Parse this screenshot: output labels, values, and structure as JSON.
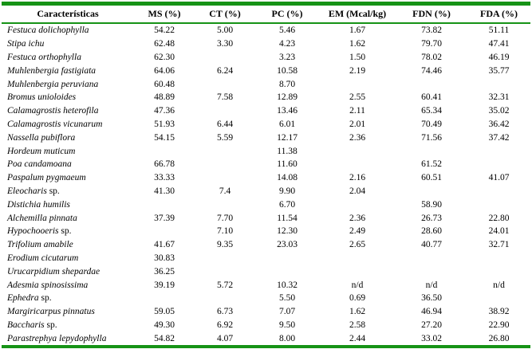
{
  "rule_color": "#169316",
  "table": {
    "columns": [
      "Características",
      "MS (%)",
      "CT (%)",
      "PC (%)",
      "EM (Mcal/kg)",
      "FDN (%)",
      "FDA (%)"
    ],
    "rows": [
      {
        "species": "Festuca dolichophylla",
        "suffix": "",
        "ms": "54.22",
        "ct": "5.00",
        "pc": "5.46",
        "em": "1.67",
        "fdn": "73.82",
        "fda": "51.11"
      },
      {
        "species": "Stipa ichu",
        "suffix": "",
        "ms": "62.48",
        "ct": "3.30",
        "pc": "4.23",
        "em": "1.62",
        "fdn": "79.70",
        "fda": "47.41"
      },
      {
        "species": "Festuca orthophylla",
        "suffix": "",
        "ms": "62.30",
        "ct": "",
        "pc": "3.23",
        "em": "1.50",
        "fdn": "78.02",
        "fda": "46.19"
      },
      {
        "species": "Muhlenbergia fastigiata",
        "suffix": "",
        "ms": "64.06",
        "ct": "6.24",
        "pc": "10.58",
        "em": "2.19",
        "fdn": "74.46",
        "fda": "35.77"
      },
      {
        "species": "Muhlenbergia peruviana",
        "suffix": "",
        "ms": "60.48",
        "ct": "",
        "pc": "8.70",
        "em": "",
        "fdn": "",
        "fda": ""
      },
      {
        "species": "Bromus unioloides",
        "suffix": "",
        "ms": "48.89",
        "ct": "7.58",
        "pc": "12.89",
        "em": "2.55",
        "fdn": "60.41",
        "fda": "32.31"
      },
      {
        "species": "Calamagrostis heterofila",
        "suffix": "",
        "ms": "47.36",
        "ct": "",
        "pc": "13.46",
        "em": "2.11",
        "fdn": "65.34",
        "fda": "35.02"
      },
      {
        "species": "Calamagrostis vicunarum",
        "suffix": "",
        "ms": "51.93",
        "ct": "6.44",
        "pc": "6.01",
        "em": "2.01",
        "fdn": "70.49",
        "fda": "36.42"
      },
      {
        "species": "Nassella pubiflora",
        "suffix": "",
        "ms": "54.15",
        "ct": "5.59",
        "pc": "12.17",
        "em": "2.36",
        "fdn": "71.56",
        "fda": "37.42"
      },
      {
        "species": "Hordeum muticum",
        "suffix": "",
        "ms": "",
        "ct": "",
        "pc": "11.38",
        "em": "",
        "fdn": "",
        "fda": ""
      },
      {
        "species": "Poa candamoana",
        "suffix": "",
        "ms": "66.78",
        "ct": "",
        "pc": "11.60",
        "em": "",
        "fdn": "61.52",
        "fda": ""
      },
      {
        "species": "Paspalum pygmaeum",
        "suffix": "",
        "ms": "33.33",
        "ct": "",
        "pc": "14.08",
        "em": "2.16",
        "fdn": "60.51",
        "fda": "41.07"
      },
      {
        "species": "Eleocharis",
        "suffix": " sp.",
        "ms": "41.30",
        "ct": "7.4",
        "pc": "9.90",
        "em": "2.04",
        "fdn": "",
        "fda": ""
      },
      {
        "species": "Distichia humilis",
        "suffix": "",
        "ms": "",
        "ct": "",
        "pc": "6.70",
        "em": "",
        "fdn": "58.90",
        "fda": ""
      },
      {
        "species": "Alchemilla pinnata",
        "suffix": "",
        "ms": "37.39",
        "ct": "7.70",
        "pc": "11.54",
        "em": "2.36",
        "fdn": "26.73",
        "fda": "22.80"
      },
      {
        "species": "Hypochooeris",
        "suffix": " sp.",
        "ms": "",
        "ct": "7.10",
        "pc": "12.30",
        "em": "2.49",
        "fdn": "28.60",
        "fda": "24.01"
      },
      {
        "species": "Trifolium amabile",
        "suffix": "",
        "ms": "41.67",
        "ct": "9.35",
        "pc": "23.03",
        "em": "2.65",
        "fdn": "40.77",
        "fda": "32.71"
      },
      {
        "species": "Erodium cicutarum",
        "suffix": "",
        "ms": "30.83",
        "ct": "",
        "pc": "",
        "em": "",
        "fdn": "",
        "fda": ""
      },
      {
        "species": "Urucarpidium shepardae",
        "suffix": "",
        "ms": "36.25",
        "ct": "",
        "pc": "",
        "em": "",
        "fdn": "",
        "fda": ""
      },
      {
        "species": "Adesmia spinosissima",
        "suffix": "",
        "ms": "39.19",
        "ct": "5.72",
        "pc": "10.32",
        "em": "n/d",
        "fdn": "n/d",
        "fda": "n/d"
      },
      {
        "species": "Ephedra",
        "suffix": " sp.",
        "ms": "",
        "ct": "",
        "pc": "5.50",
        "em": "0.69",
        "fdn": "36.50",
        "fda": ""
      },
      {
        "species": "Margiricarpus pinnatus",
        "suffix": "",
        "ms": "59.05",
        "ct": "6.73",
        "pc": "7.07",
        "em": "1.62",
        "fdn": "46.94",
        "fda": "38.92"
      },
      {
        "species": "Baccharis",
        "suffix": " sp.",
        "ms": "49.30",
        "ct": "6.92",
        "pc": "9.50",
        "em": "2.58",
        "fdn": "27.20",
        "fda": "22.90"
      },
      {
        "species": "Parastrephya lepydophylla",
        "suffix": "",
        "ms": "54.82",
        "ct": "4.07",
        "pc": "8.00",
        "em": "2.44",
        "fdn": "33.02",
        "fda": "26.80"
      }
    ]
  }
}
